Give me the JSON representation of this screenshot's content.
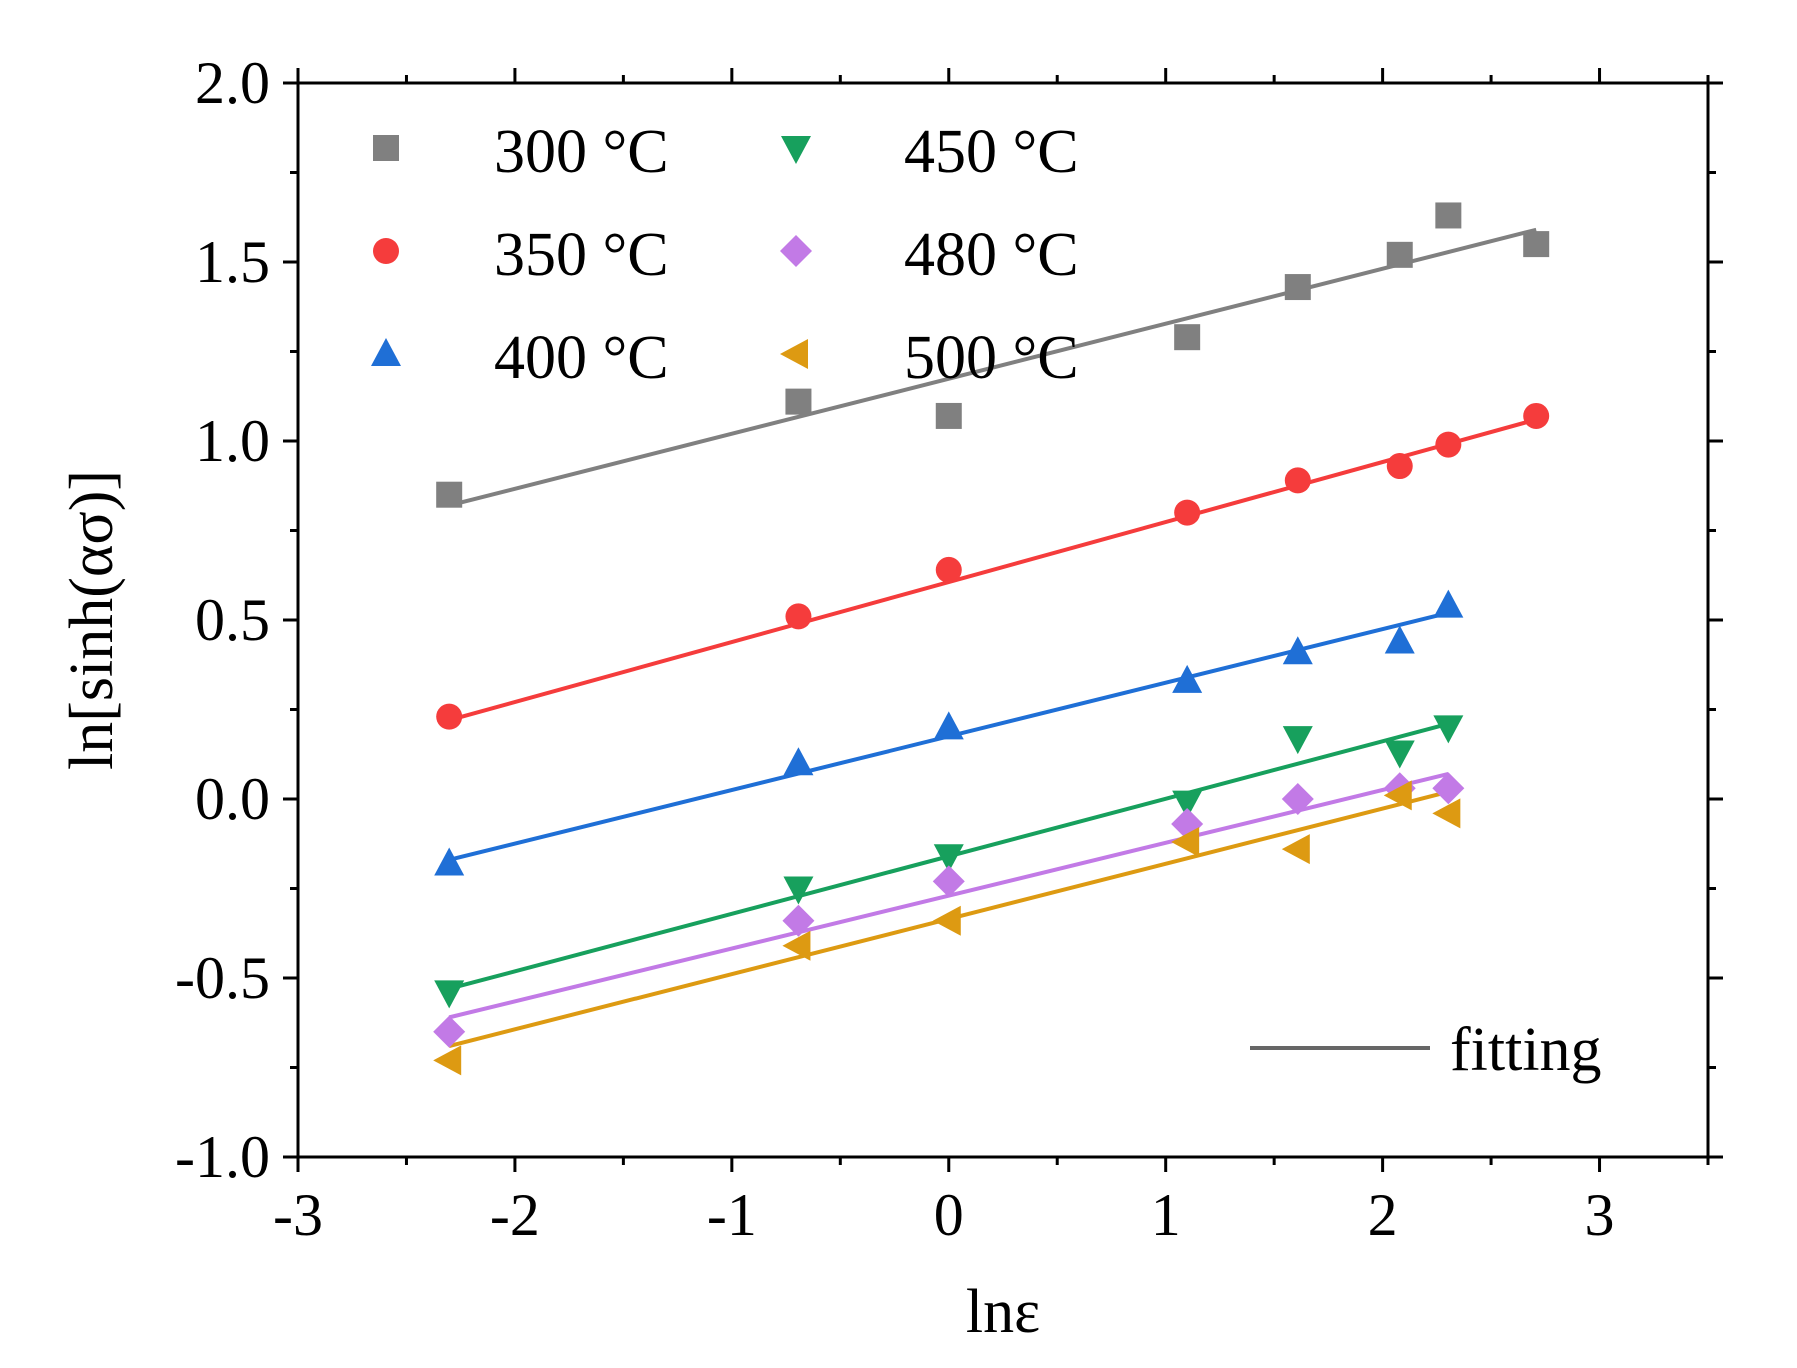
{
  "chart_data": {
    "type": "scatter",
    "xlabel": "lnε",
    "ylabel": "ln[sinh(ασ)]",
    "xlim": [
      -3,
      3.5
    ],
    "ylim": [
      -1.0,
      2.0
    ],
    "x_ticks": [
      "-3",
      "-2",
      "-1",
      "0",
      "1",
      "2",
      "3"
    ],
    "y_ticks": [
      "2.0",
      "1.5",
      "1.0",
      "0.5",
      "0.0",
      "-0.5",
      "-1.0"
    ],
    "fit_label": "fitting",
    "fit_color": "#666666",
    "series": [
      {
        "name": "300 °C",
        "marker": "square",
        "color": "#808080",
        "x": [
          -2.303,
          -0.693,
          0,
          1.099,
          1.609,
          2.079,
          2.303,
          2.708
        ],
        "y": [
          0.85,
          1.11,
          1.07,
          1.29,
          1.43,
          1.52,
          1.63,
          1.55
        ],
        "fit": {
          "x": [
            -2.303,
            2.708
          ],
          "y": [
            0.82,
            1.59
          ]
        }
      },
      {
        "name": "350 °C",
        "marker": "circle",
        "color": "#f53c3c",
        "x": [
          -2.303,
          -0.693,
          0,
          1.099,
          1.609,
          2.079,
          2.303,
          2.708
        ],
        "y": [
          0.23,
          0.51,
          0.64,
          0.8,
          0.89,
          0.93,
          0.99,
          1.07
        ],
        "fit": {
          "x": [
            -2.303,
            2.708
          ],
          "y": [
            0.22,
            1.06
          ]
        }
      },
      {
        "name": "400 °C",
        "marker": "triangle-up",
        "color": "#1f6fd6",
        "x": [
          -2.303,
          -0.693,
          0,
          1.099,
          1.609,
          2.079,
          2.303
        ],
        "y": [
          -0.18,
          0.1,
          0.2,
          0.33,
          0.41,
          0.44,
          0.54
        ],
        "fit": {
          "x": [
            -2.303,
            2.303
          ],
          "y": [
            -0.17,
            0.52
          ]
        }
      },
      {
        "name": "450 °C",
        "marker": "triangle-down",
        "color": "#17a05d",
        "x": [
          -2.303,
          -0.693,
          0,
          1.099,
          1.609,
          2.079,
          2.303
        ],
        "y": [
          -0.54,
          -0.25,
          -0.16,
          -0.01,
          0.17,
          0.13,
          0.2
        ],
        "fit": {
          "x": [
            -2.303,
            2.303
          ],
          "y": [
            -0.53,
            0.21
          ]
        }
      },
      {
        "name": "480 °C",
        "marker": "diamond",
        "color": "#c27ae6",
        "x": [
          -2.303,
          -0.693,
          0,
          1.099,
          1.609,
          2.079,
          2.303
        ],
        "y": [
          -0.65,
          -0.34,
          -0.23,
          -0.07,
          0.0,
          0.03,
          0.03
        ],
        "fit": {
          "x": [
            -2.303,
            2.303
          ],
          "y": [
            -0.61,
            0.07
          ]
        }
      },
      {
        "name": "500 °C",
        "marker": "triangle-left",
        "color": "#dd9a12",
        "x": [
          -2.303,
          -0.693,
          0,
          1.099,
          1.609,
          2.079,
          2.303
        ],
        "y": [
          -0.73,
          -0.41,
          -0.34,
          -0.12,
          -0.14,
          0.01,
          -0.04
        ],
        "fit": {
          "x": [
            -2.303,
            2.303
          ],
          "y": [
            -0.69,
            0.02
          ]
        }
      }
    ]
  }
}
